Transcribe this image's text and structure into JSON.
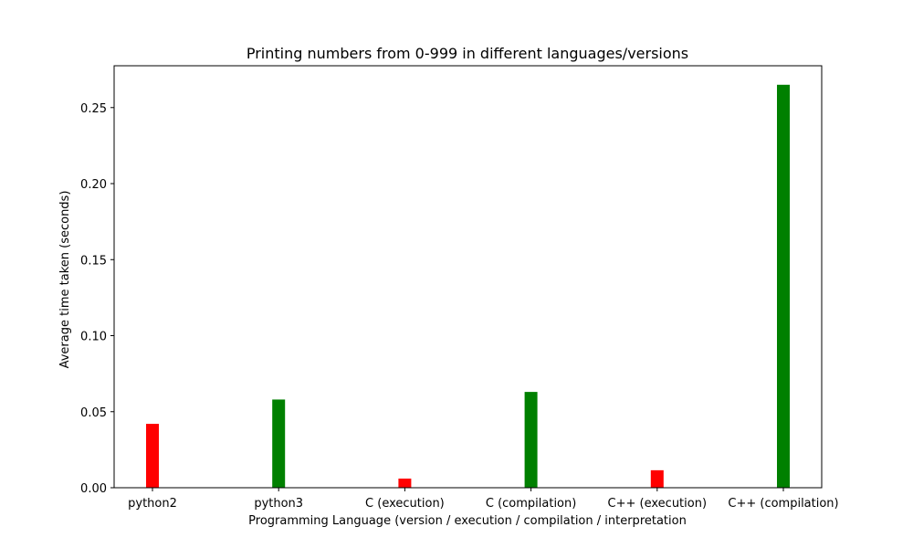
{
  "chart_data": {
    "type": "bar",
    "title": "Printing numbers from 0-999 in different languages/versions",
    "xlabel": "Programming Language (version / execution / compilation / interpretation",
    "ylabel": "Average time taken (seconds)",
    "categories": [
      "python2",
      "python3",
      "C (execution)",
      "C (compilation)",
      "C++ (execution)",
      "C++ (compilation)"
    ],
    "values": [
      0.042,
      0.058,
      0.006,
      0.063,
      0.0115,
      0.265
    ],
    "bar_colors": [
      "#ff0000",
      "#008000",
      "#ff0000",
      "#008000",
      "#ff0000",
      "#008000"
    ],
    "ylim": [
      0,
      0.2775
    ],
    "yticks": [
      0.0,
      0.05,
      0.1,
      0.15,
      0.2,
      0.25
    ],
    "ytick_labels": [
      "0.00",
      "0.05",
      "0.10",
      "0.15",
      "0.20",
      "0.25"
    ],
    "grid": false,
    "legend": "none"
  }
}
